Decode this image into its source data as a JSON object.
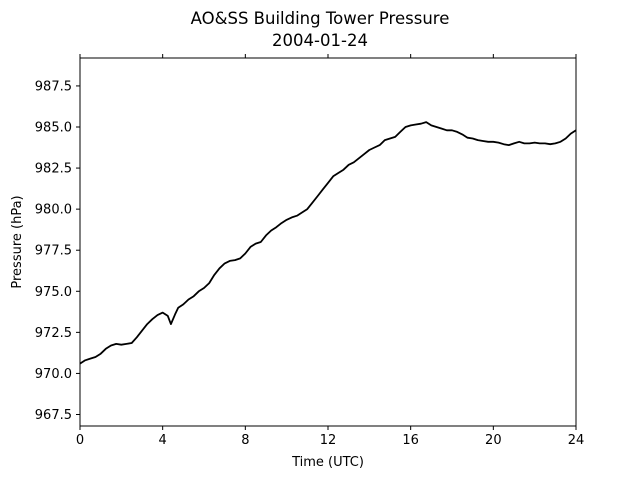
{
  "chart_data": {
    "type": "line",
    "title": "AO&SS Building Tower Pressure",
    "subtitle": "2004-01-24",
    "xlabel": "Time (UTC)",
    "ylabel": "Pressure (hPa)",
    "xlim": [
      0,
      24
    ],
    "ylim": [
      966.8,
      989.2
    ],
    "xticks": [
      0,
      4,
      8,
      12,
      16,
      20,
      24
    ],
    "xtick_labels": [
      "0",
      "4",
      "8",
      "12",
      "16",
      "20",
      "24"
    ],
    "yticks": [
      967.5,
      970.0,
      972.5,
      975.0,
      977.5,
      980.0,
      982.5,
      985.0,
      987.5
    ],
    "ytick_labels": [
      "967.5",
      "970.0",
      "972.5",
      "975.0",
      "977.5",
      "980.0",
      "982.5",
      "985.0",
      "987.5"
    ],
    "grid": false,
    "series": [
      {
        "color": "#000000",
        "x": [
          0.0,
          0.25,
          0.5,
          0.75,
          1.0,
          1.25,
          1.5,
          1.75,
          2.0,
          2.25,
          2.5,
          2.75,
          3.0,
          3.25,
          3.5,
          3.75,
          4.0,
          4.25,
          4.4,
          4.6,
          4.75,
          5.0,
          5.25,
          5.5,
          5.75,
          6.0,
          6.25,
          6.5,
          6.75,
          7.0,
          7.25,
          7.5,
          7.75,
          8.0,
          8.25,
          8.5,
          8.75,
          9.0,
          9.25,
          9.5,
          9.75,
          10.0,
          10.25,
          10.5,
          10.75,
          11.0,
          11.25,
          11.5,
          11.75,
          12.0,
          12.25,
          12.5,
          12.75,
          13.0,
          13.25,
          13.5,
          13.75,
          14.0,
          14.25,
          14.5,
          14.75,
          15.0,
          15.25,
          15.5,
          15.75,
          16.0,
          16.25,
          16.5,
          16.75,
          17.0,
          17.25,
          17.5,
          17.75,
          18.0,
          18.25,
          18.5,
          18.75,
          19.0,
          19.25,
          19.5,
          19.75,
          20.0,
          20.25,
          20.5,
          20.75,
          21.0,
          21.25,
          21.5,
          21.75,
          22.0,
          22.25,
          22.5,
          22.75,
          23.0,
          23.25,
          23.5,
          23.75,
          24.0
        ],
        "y": [
          970.6,
          970.8,
          970.9,
          971.0,
          971.2,
          971.5,
          971.7,
          971.8,
          971.75,
          971.8,
          971.85,
          972.2,
          972.6,
          973.0,
          973.3,
          973.55,
          973.7,
          973.5,
          973.0,
          973.6,
          974.0,
          974.2,
          974.5,
          974.7,
          975.0,
          975.2,
          975.5,
          976.0,
          976.4,
          976.7,
          976.85,
          976.9,
          977.0,
          977.3,
          977.7,
          977.9,
          978.0,
          978.4,
          978.7,
          978.9,
          979.15,
          979.35,
          979.5,
          979.6,
          979.8,
          980.0,
          980.4,
          980.8,
          981.2,
          981.6,
          982.0,
          982.2,
          982.4,
          982.7,
          982.85,
          983.1,
          983.35,
          983.6,
          983.75,
          983.9,
          984.2,
          984.3,
          984.4,
          984.7,
          985.0,
          985.1,
          985.15,
          985.2,
          985.3,
          985.1,
          985.0,
          984.9,
          984.8,
          984.8,
          984.7,
          984.55,
          984.35,
          984.3,
          984.2,
          984.15,
          984.1,
          984.1,
          984.05,
          983.95,
          983.9,
          984.0,
          984.1,
          984.0,
          984.0,
          984.05,
          984.0,
          984.0,
          983.95,
          984.0,
          984.1,
          984.3,
          984.6,
          984.8
        ]
      }
    ]
  }
}
